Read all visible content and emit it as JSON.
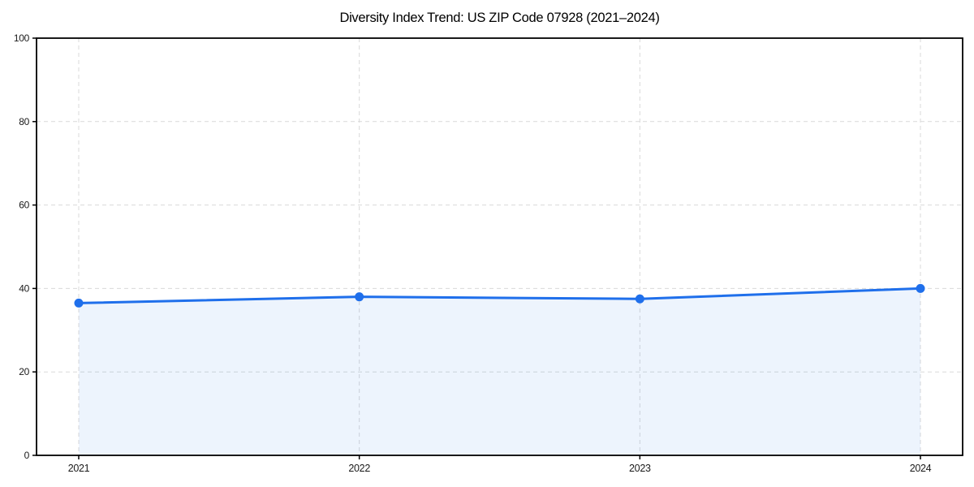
{
  "chart_data": {
    "type": "area",
    "title": "Diversity Index Trend: US ZIP Code 07928 (2021–2024)",
    "categories": [
      "2021",
      "2022",
      "2023",
      "2024"
    ],
    "series": [
      {
        "name": "Diversity Index",
        "values": [
          36.5,
          38,
          37.5,
          40
        ]
      }
    ],
    "xlabel": "",
    "ylabel": "",
    "ylim": [
      0,
      100
    ],
    "yticks": [
      0,
      20,
      40,
      60,
      80,
      100
    ],
    "grid": true,
    "grid_style": "dashed",
    "legend": "none",
    "colors": {
      "line": "#1f6feb",
      "marker": "#1f6feb",
      "fill": "#1f6feb",
      "fill_opacity": 0.08,
      "grid": "#d9d9d9",
      "axis": "#000000",
      "title_text": "#000000",
      "tick_text": "#1a1a1a"
    }
  }
}
